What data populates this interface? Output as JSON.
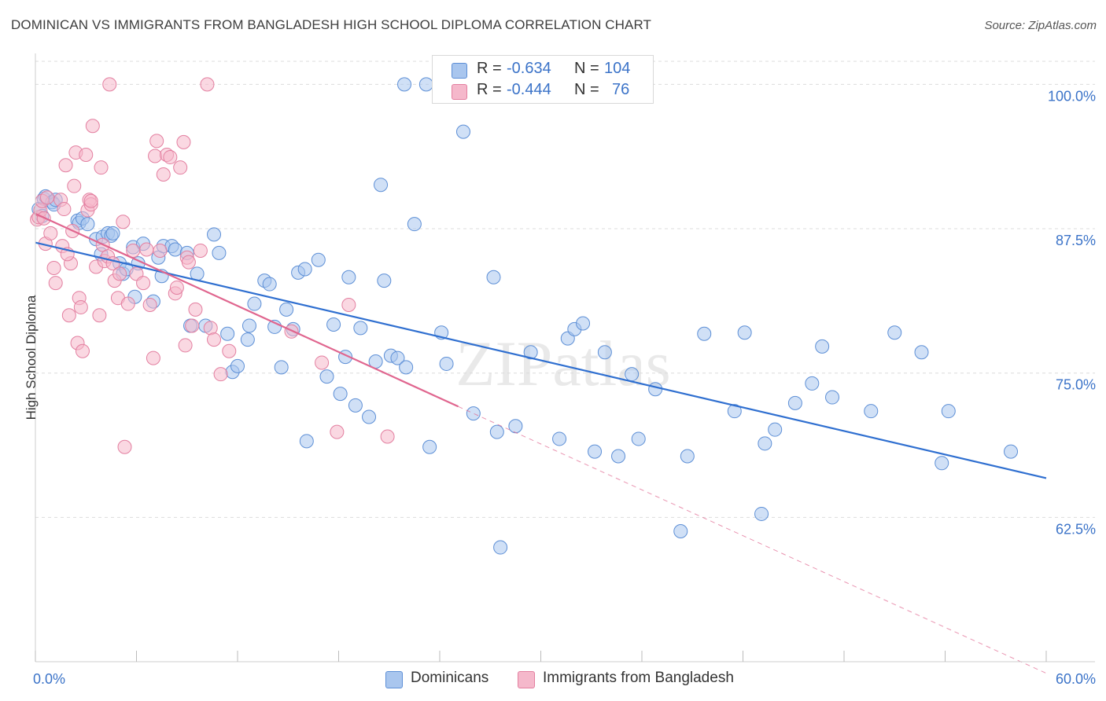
{
  "header": {
    "title": "DOMINICAN VS IMMIGRANTS FROM BANGLADESH HIGH SCHOOL DIPLOMA CORRELATION CHART",
    "source": "Source: ZipAtlas.com"
  },
  "legend": {
    "series1": {
      "r_label": "R =",
      "r_value": "-0.634",
      "n_label": "N =",
      "n_value": "104"
    },
    "series2": {
      "r_label": "R =",
      "r_value": "-0.444",
      "n_label": "N =",
      "n_value": "76"
    }
  },
  "colors": {
    "blue_fill": "#a9c6ee",
    "blue_stroke": "#5d8fd6",
    "blue_line": "#2f6fd0",
    "pink_fill": "#f5b8cb",
    "pink_stroke": "#e37fa0",
    "pink_line": "#e0668f",
    "tick_text": "#3b73c8",
    "grid": "#dcdcdc"
  },
  "chart_data": {
    "type": "scatter",
    "title": "DOMINICAN VS IMMIGRANTS FROM BANGLADESH HIGH SCHOOL DIPLOMA CORRELATION CHART",
    "xlabel": "",
    "ylabel": "High School Diploma",
    "xlim": [
      0,
      60
    ],
    "ylim": [
      50,
      102
    ],
    "x_tick_labels": [
      "0.0%",
      "60.0%"
    ],
    "y_ticks": [
      62.5,
      75.0,
      87.5,
      100.0
    ],
    "y_tick_labels": [
      "62.5%",
      "75.0%",
      "87.5%",
      "100.0%"
    ],
    "watermark": "ZIPatlas",
    "series": [
      {
        "name": "Dominicans",
        "color": "blue",
        "trend": {
          "x0": 0,
          "y0": 86.3,
          "x1": 60,
          "y1": 65.9
        },
        "points": [
          [
            0.2,
            89.2
          ],
          [
            0.4,
            88.6
          ],
          [
            0.5,
            90.1
          ],
          [
            0.6,
            90.3
          ],
          [
            1.0,
            89.8
          ],
          [
            1.1,
            89.6
          ],
          [
            1.2,
            90.0
          ],
          [
            2.5,
            88.2
          ],
          [
            2.6,
            88.0
          ],
          [
            2.8,
            88.4
          ],
          [
            3.1,
            87.9
          ],
          [
            3.6,
            86.6
          ],
          [
            3.9,
            85.3
          ],
          [
            4.0,
            86.8
          ],
          [
            4.3,
            87.1
          ],
          [
            4.5,
            86.9
          ],
          [
            4.6,
            87.1
          ],
          [
            5.0,
            84.5
          ],
          [
            5.2,
            83.6
          ],
          [
            5.4,
            84.0
          ],
          [
            5.8,
            85.9
          ],
          [
            5.9,
            81.6
          ],
          [
            6.1,
            84.5
          ],
          [
            6.4,
            86.2
          ],
          [
            7.0,
            81.2
          ],
          [
            7.3,
            85.0
          ],
          [
            7.5,
            83.4
          ],
          [
            7.6,
            86.0
          ],
          [
            8.1,
            86.0
          ],
          [
            8.3,
            85.7
          ],
          [
            9.0,
            85.4
          ],
          [
            9.2,
            79.1
          ],
          [
            9.6,
            83.6
          ],
          [
            10.1,
            79.1
          ],
          [
            10.6,
            87.0
          ],
          [
            10.9,
            85.4
          ],
          [
            11.4,
            78.4
          ],
          [
            11.7,
            75.1
          ],
          [
            12.0,
            75.6
          ],
          [
            12.6,
            77.9
          ],
          [
            12.7,
            79.1
          ],
          [
            13.0,
            81.0
          ],
          [
            13.6,
            83.0
          ],
          [
            13.9,
            82.7
          ],
          [
            14.2,
            79.0
          ],
          [
            14.6,
            75.5
          ],
          [
            14.9,
            80.5
          ],
          [
            15.3,
            78.8
          ],
          [
            15.6,
            83.7
          ],
          [
            16.0,
            84.0
          ],
          [
            16.1,
            69.1
          ],
          [
            16.8,
            84.8
          ],
          [
            17.3,
            74.7
          ],
          [
            17.7,
            79.2
          ],
          [
            18.1,
            73.2
          ],
          [
            18.4,
            76.4
          ],
          [
            18.6,
            83.3
          ],
          [
            19.0,
            72.2
          ],
          [
            19.3,
            78.9
          ],
          [
            19.8,
            71.2
          ],
          [
            20.2,
            76.0
          ],
          [
            20.7,
            83.0
          ],
          [
            21.1,
            76.5
          ],
          [
            21.5,
            76.3
          ],
          [
            21.9,
            100.0
          ],
          [
            22.0,
            75.5
          ],
          [
            22.5,
            87.9
          ],
          [
            23.2,
            100.0
          ],
          [
            23.4,
            68.6
          ],
          [
            24.1,
            78.5
          ],
          [
            24.4,
            75.8
          ],
          [
            25.4,
            95.9
          ],
          [
            26.0,
            71.5
          ],
          [
            27.2,
            83.3
          ],
          [
            27.4,
            69.9
          ],
          [
            27.6,
            59.9
          ],
          [
            28.5,
            70.4
          ],
          [
            29.4,
            76.8
          ],
          [
            31.1,
            69.3
          ],
          [
            31.6,
            78.0
          ],
          [
            32.0,
            78.8
          ],
          [
            32.5,
            79.3
          ],
          [
            33.2,
            68.2
          ],
          [
            33.8,
            76.8
          ],
          [
            34.6,
            67.8
          ],
          [
            35.4,
            74.9
          ],
          [
            35.8,
            69.3
          ],
          [
            36.8,
            73.6
          ],
          [
            38.3,
            61.3
          ],
          [
            38.7,
            67.8
          ],
          [
            39.7,
            78.4
          ],
          [
            41.5,
            71.7
          ],
          [
            42.1,
            78.5
          ],
          [
            43.1,
            62.8
          ],
          [
            43.3,
            68.9
          ],
          [
            43.9,
            70.1
          ],
          [
            45.1,
            72.4
          ],
          [
            46.1,
            74.1
          ],
          [
            46.7,
            77.3
          ],
          [
            47.3,
            72.9
          ],
          [
            49.6,
            71.7
          ],
          [
            51.0,
            78.5
          ],
          [
            52.6,
            76.8
          ],
          [
            53.8,
            67.2
          ],
          [
            54.2,
            71.7
          ],
          [
            57.9,
            68.2
          ],
          [
            20.5,
            91.3
          ]
        ]
      },
      {
        "name": "Immigrants from Bangladesh",
        "color": "pink",
        "trend": {
          "x0": 0,
          "y0": 88.8,
          "x1": 25.1,
          "y1": 72.1
        },
        "trend_dashed": {
          "x0": 25.1,
          "y0": 72.1,
          "x1": 60,
          "y1": 49.0
        },
        "points": [
          [
            0.1,
            88.3
          ],
          [
            0.2,
            88.5
          ],
          [
            0.3,
            89.1
          ],
          [
            0.4,
            89.9
          ],
          [
            0.5,
            88.4
          ],
          [
            0.6,
            86.2
          ],
          [
            0.7,
            90.2
          ],
          [
            0.9,
            87.1
          ],
          [
            1.1,
            84.1
          ],
          [
            1.2,
            82.8
          ],
          [
            1.5,
            90.0
          ],
          [
            1.6,
            86.0
          ],
          [
            1.7,
            89.2
          ],
          [
            1.8,
            93.0
          ],
          [
            2.0,
            80.0
          ],
          [
            2.1,
            84.5
          ],
          [
            2.2,
            87.3
          ],
          [
            2.3,
            91.2
          ],
          [
            2.4,
            94.1
          ],
          [
            2.5,
            77.6
          ],
          [
            2.6,
            81.5
          ],
          [
            2.7,
            80.7
          ],
          [
            2.8,
            76.9
          ],
          [
            3.0,
            93.9
          ],
          [
            3.1,
            89.1
          ],
          [
            3.2,
            90.0
          ],
          [
            3.3,
            89.6
          ],
          [
            3.4,
            96.4
          ],
          [
            3.6,
            84.2
          ],
          [
            3.8,
            80.0
          ],
          [
            3.9,
            92.8
          ],
          [
            4.0,
            86.1
          ],
          [
            4.1,
            84.7
          ],
          [
            4.3,
            85.1
          ],
          [
            4.4,
            100.0
          ],
          [
            4.6,
            84.5
          ],
          [
            4.7,
            83.0
          ],
          [
            4.9,
            81.5
          ],
          [
            5.0,
            83.6
          ],
          [
            5.2,
            88.1
          ],
          [
            5.3,
            68.6
          ],
          [
            5.5,
            81.0
          ],
          [
            5.8,
            85.6
          ],
          [
            6.0,
            83.6
          ],
          [
            6.4,
            82.8
          ],
          [
            6.8,
            80.9
          ],
          [
            7.0,
            76.3
          ],
          [
            7.1,
            93.8
          ],
          [
            7.2,
            95.1
          ],
          [
            7.4,
            85.6
          ],
          [
            7.6,
            92.2
          ],
          [
            7.8,
            93.9
          ],
          [
            8.0,
            93.7
          ],
          [
            8.3,
            81.9
          ],
          [
            8.4,
            82.4
          ],
          [
            8.6,
            92.8
          ],
          [
            8.8,
            95.0
          ],
          [
            8.9,
            77.4
          ],
          [
            9.0,
            85.0
          ],
          [
            9.1,
            84.6
          ],
          [
            9.3,
            79.1
          ],
          [
            9.5,
            80.5
          ],
          [
            10.2,
            100.0
          ],
          [
            10.4,
            78.9
          ],
          [
            10.6,
            77.9
          ],
          [
            11.0,
            74.9
          ],
          [
            11.5,
            76.9
          ],
          [
            15.2,
            78.6
          ],
          [
            17.0,
            75.9
          ],
          [
            17.9,
            69.9
          ],
          [
            18.6,
            80.9
          ],
          [
            20.9,
            69.5
          ],
          [
            3.3,
            89.9
          ],
          [
            1.9,
            85.3
          ],
          [
            6.6,
            85.7
          ],
          [
            9.8,
            85.6
          ]
        ]
      }
    ]
  },
  "bottom_legend": {
    "item1": "Dominicans",
    "item2": "Immigrants from Bangladesh"
  }
}
